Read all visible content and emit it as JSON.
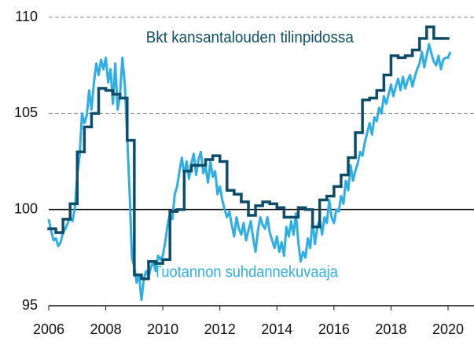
{
  "chart_data": {
    "type": "line",
    "annotations": [
      {
        "text": "Bkt kansantalouden tilinpidossa",
        "x": 2013.05,
        "y": 108.9,
        "color": "#0e4d6a"
      },
      {
        "text": "Tuotannon suhdannekuvaaja",
        "x": 2012.9,
        "y": 96.7,
        "color": "#2eaee4"
      }
    ],
    "xlim": [
      2006,
      2020.91
    ],
    "xticks": [
      2006,
      2008,
      2010,
      2012,
      2014,
      2016,
      2018,
      2020
    ],
    "ylim": [
      95,
      110
    ],
    "yticks": [
      95,
      100,
      105,
      110
    ],
    "reference_line": 100,
    "grid": true,
    "series": [
      {
        "color": "#0e4d6a",
        "step": 0.25,
        "x": [
          2006,
          2006.25,
          2006.5,
          2006.75,
          2007,
          2007.25,
          2007.5,
          2007.75,
          2008,
          2008.25,
          2008.5,
          2008.75,
          2009,
          2009.25,
          2009.5,
          2009.75,
          2010,
          2010.25,
          2010.5,
          2010.75,
          2011,
          2011.25,
          2011.5,
          2011.75,
          2012,
          2012.25,
          2012.5,
          2012.75,
          2013,
          2013.25,
          2013.5,
          2013.75,
          2014,
          2014.25,
          2014.5,
          2014.75,
          2015,
          2015.25,
          2015.5,
          2015.75,
          2016,
          2016.25,
          2016.5,
          2016.75,
          2017,
          2017.25,
          2017.5,
          2017.75,
          2018,
          2018.25,
          2018.5,
          2018.75,
          2019,
          2019.25,
          2019.5,
          2019.75
        ],
        "values": [
          99.0,
          98.8,
          99.5,
          100.3,
          103.0,
          104.3,
          105.0,
          106.3,
          106.2,
          106.0,
          105.8,
          103.6,
          96.6,
          96.4,
          97.3,
          97.2,
          97.4,
          99.9,
          100.0,
          102.0,
          102.3,
          102.3,
          102.6,
          102.8,
          102.5,
          101.0,
          100.8,
          100.4,
          99.7,
          100.2,
          100.4,
          100.3,
          100.1,
          99.6,
          99.6,
          100.1,
          100.0,
          99.1,
          100.5,
          100.7,
          101.2,
          101.8,
          102.7,
          104.0,
          105.7,
          105.8,
          106.2,
          107.0,
          108.0,
          107.9,
          108.0,
          108.3,
          108.9,
          109.5,
          108.9,
          108.9
        ]
      },
      {
        "color": "#2eaee4",
        "x": [
          2006,
          2006.083,
          2006.167,
          2006.25,
          2006.333,
          2006.417,
          2006.5,
          2006.583,
          2006.667,
          2006.75,
          2006.833,
          2006.917,
          2007,
          2007.083,
          2007.167,
          2007.25,
          2007.333,
          2007.417,
          2007.5,
          2007.583,
          2007.667,
          2007.75,
          2007.833,
          2007.917,
          2008,
          2008.083,
          2008.167,
          2008.25,
          2008.333,
          2008.417,
          2008.5,
          2008.583,
          2008.667,
          2008.75,
          2008.833,
          2008.917,
          2009,
          2009.083,
          2009.167,
          2009.25,
          2009.333,
          2009.417,
          2009.5,
          2009.583,
          2009.667,
          2009.75,
          2009.833,
          2009.917,
          2010,
          2010.083,
          2010.167,
          2010.25,
          2010.333,
          2010.417,
          2010.5,
          2010.583,
          2010.667,
          2010.75,
          2010.833,
          2010.917,
          2011,
          2011.083,
          2011.167,
          2011.25,
          2011.333,
          2011.417,
          2011.5,
          2011.583,
          2011.667,
          2011.75,
          2011.833,
          2011.917,
          2012,
          2012.083,
          2012.167,
          2012.25,
          2012.333,
          2012.417,
          2012.5,
          2012.583,
          2012.667,
          2012.75,
          2012.833,
          2012.917,
          2013,
          2013.083,
          2013.167,
          2013.25,
          2013.333,
          2013.417,
          2013.5,
          2013.583,
          2013.667,
          2013.75,
          2013.833,
          2013.917,
          2014,
          2014.083,
          2014.167,
          2014.25,
          2014.333,
          2014.417,
          2014.5,
          2014.583,
          2014.667,
          2014.75,
          2014.833,
          2014.917,
          2015,
          2015.083,
          2015.167,
          2015.25,
          2015.333,
          2015.417,
          2015.5,
          2015.583,
          2015.667,
          2015.75,
          2015.833,
          2015.917,
          2016,
          2016.083,
          2016.167,
          2016.25,
          2016.333,
          2016.417,
          2016.5,
          2016.583,
          2016.667,
          2016.75,
          2016.833,
          2016.917,
          2017,
          2017.083,
          2017.167,
          2017.25,
          2017.333,
          2017.417,
          2017.5,
          2017.583,
          2017.667,
          2017.75,
          2017.833,
          2017.917,
          2018,
          2018.083,
          2018.167,
          2018.25,
          2018.333,
          2018.417,
          2018.5,
          2018.583,
          2018.667,
          2018.75,
          2018.833,
          2018.917,
          2019,
          2019.083,
          2019.167,
          2019.25,
          2019.333,
          2019.417,
          2019.5,
          2019.583,
          2019.667,
          2019.75,
          2019.833,
          2019.917,
          2020,
          2020.083
        ],
        "values": [
          99.5,
          98.9,
          98.4,
          98.5,
          98.1,
          98.3,
          98.8,
          99.0,
          99.3,
          99.6,
          99.4,
          100.1,
          101.8,
          102.8,
          105.0,
          104.5,
          104.9,
          106.2,
          105.2,
          106.6,
          107.6,
          107.0,
          107.8,
          107.3,
          107.9,
          106.6,
          107.3,
          105.5,
          107.6,
          105.2,
          106.0,
          107.9,
          106.5,
          103.8,
          101.0,
          97.5,
          97.0,
          96.2,
          96.6,
          95.3,
          96.4,
          96.8,
          96.5,
          97.0,
          97.3,
          96.8,
          97.6,
          97.4,
          97.6,
          98.3,
          99.2,
          99.8,
          99.5,
          100.8,
          101.2,
          102.0,
          102.7,
          101.8,
          102.5,
          101.6,
          102.4,
          102.9,
          101.8,
          102.6,
          103.0,
          101.9,
          102.2,
          101.4,
          102.5,
          101.7,
          102.0,
          100.8,
          101.2,
          100.5,
          100.0,
          99.6,
          99.9,
          99.2,
          98.6,
          99.6,
          99.0,
          98.7,
          99.3,
          98.4,
          98.9,
          99.4,
          98.5,
          97.8,
          98.9,
          99.6,
          99.2,
          99.0,
          99.6,
          98.8,
          98.4,
          98.0,
          98.6,
          97.8,
          98.3,
          97.6,
          99.1,
          98.6,
          99.4,
          98.7,
          99.8,
          98.3,
          97.3,
          97.8,
          97.5,
          98.5,
          98.0,
          99.4,
          98.2,
          99.1,
          99.5,
          98.7,
          99.6,
          99.3,
          100.5,
          99.6,
          99.3,
          100.0,
          99.9,
          100.7,
          100.3,
          101.5,
          101.0,
          102.3,
          101.5,
          102.0,
          102.4,
          103.0,
          102.8,
          103.5,
          104.0,
          104.5,
          103.9,
          104.8,
          104.6,
          105.3,
          105.0,
          105.9,
          105.5,
          106.0,
          106.5,
          105.9,
          106.4,
          106.8,
          106.2,
          106.9,
          106.3,
          106.7,
          107.0,
          106.4,
          106.9,
          107.3,
          107.6,
          108.2,
          107.4,
          108.0,
          108.6,
          108.1,
          107.7,
          107.5,
          108.0,
          107.3,
          107.8,
          107.9,
          107.9,
          108.2
        ]
      }
    ]
  }
}
